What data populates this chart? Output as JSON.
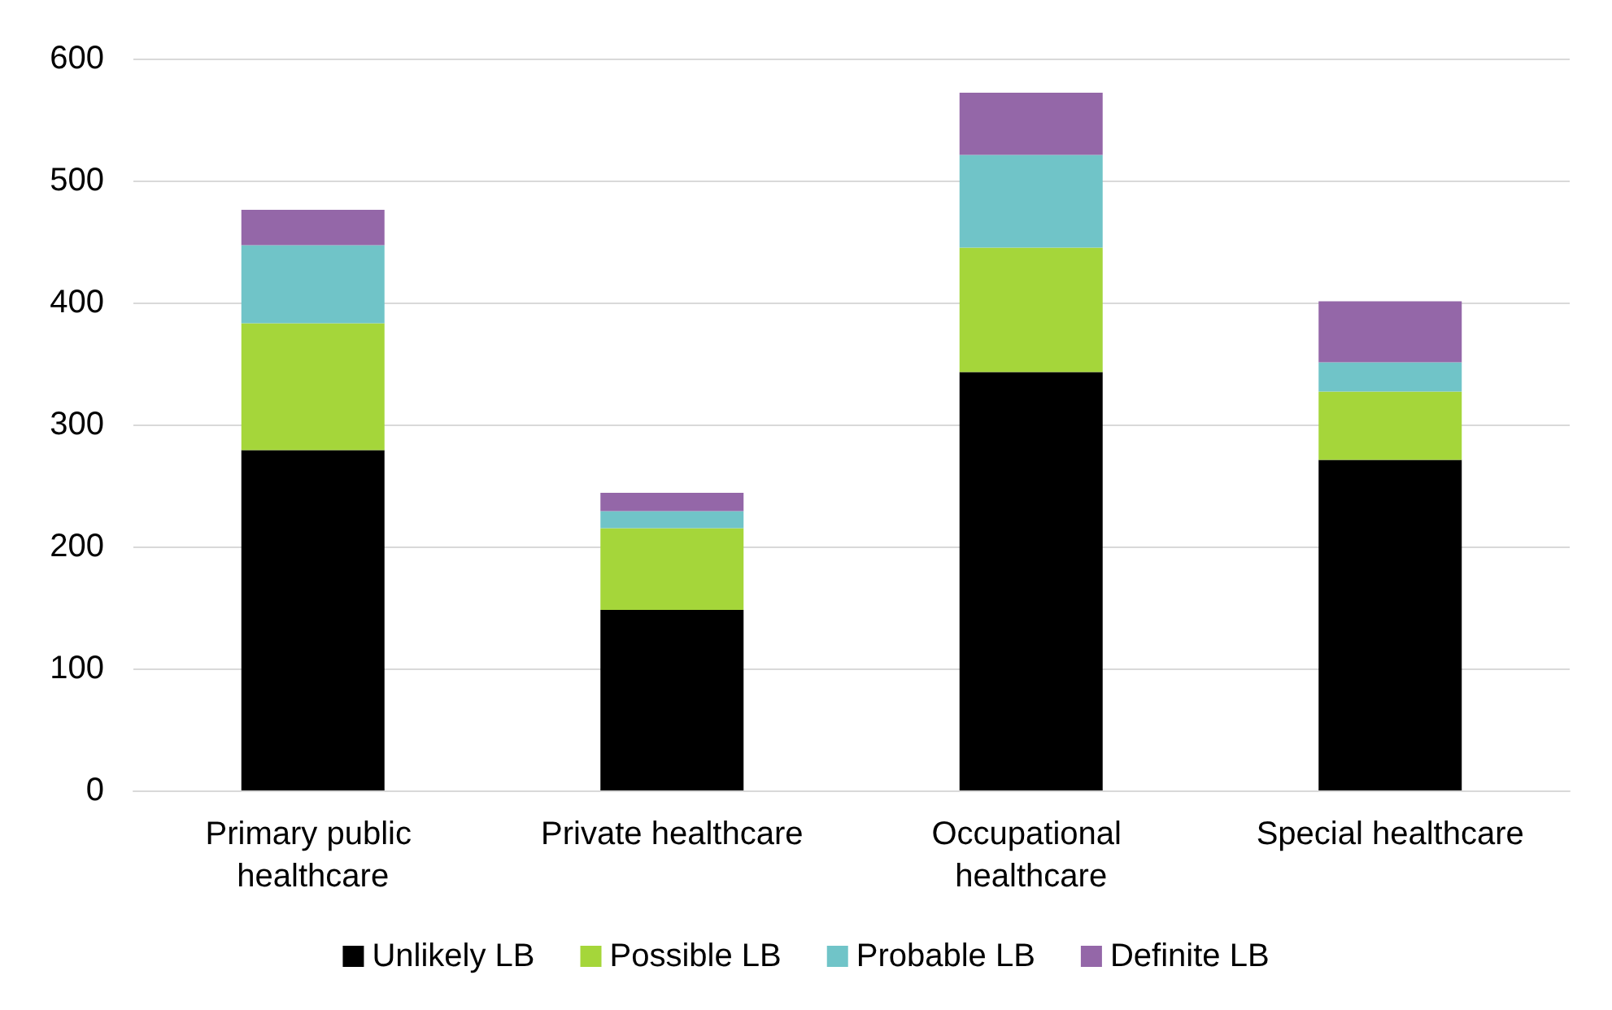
{
  "chart_data": {
    "type": "bar",
    "stacked": true,
    "categories": [
      "Primary public healthcare",
      "Private healthcare",
      "Occupational healthcare",
      "Special healthcare"
    ],
    "series": [
      {
        "name": "Unlikely LB",
        "color": "#000000",
        "values": [
          279,
          148,
          343,
          271
        ]
      },
      {
        "name": "Possible LB",
        "color": "#a5d63a",
        "values": [
          104,
          67,
          102,
          56
        ]
      },
      {
        "name": "Probable LB",
        "color": "#70c4c8",
        "values": [
          64,
          14,
          76,
          24
        ]
      },
      {
        "name": "Definite LB",
        "color": "#9467a8",
        "values": [
          29,
          15,
          51,
          50
        ]
      }
    ],
    "ylim": [
      0,
      600
    ],
    "yticks": [
      0,
      100,
      200,
      300,
      400,
      500,
      600
    ],
    "grid": "y",
    "legend": "bottom"
  }
}
